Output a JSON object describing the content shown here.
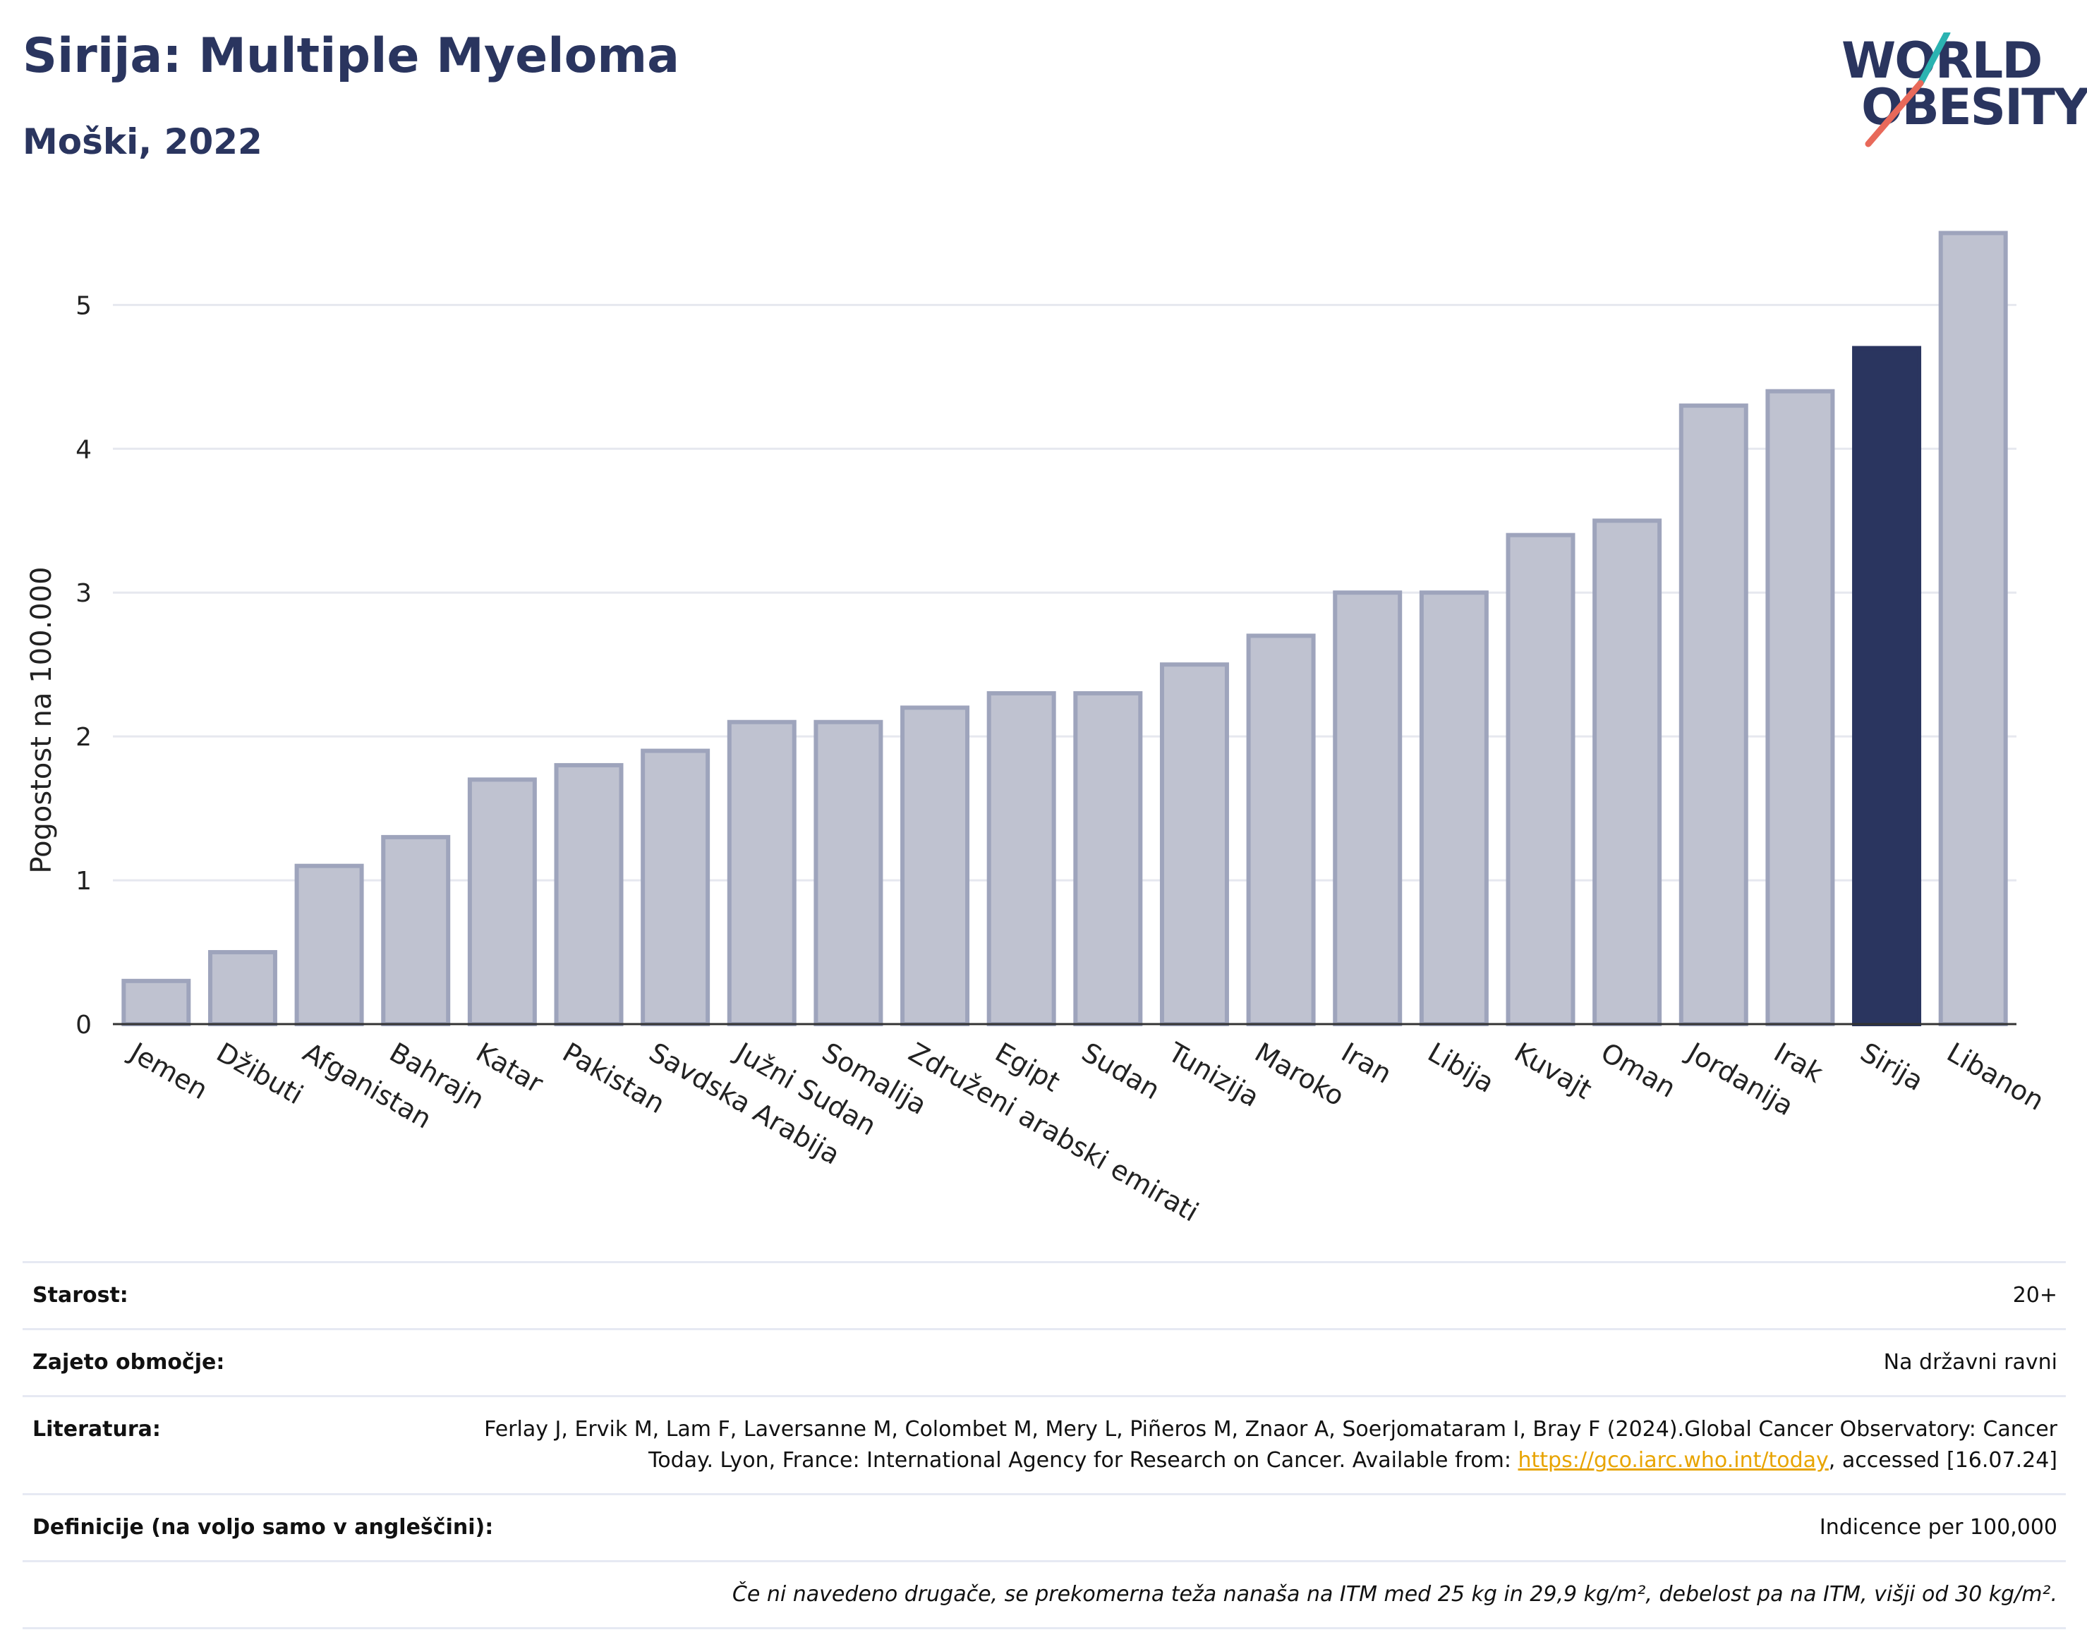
{
  "header": {
    "title": "Sirija: Multiple Myeloma",
    "subtitle": "Moški, 2022"
  },
  "logo": {
    "line1": "WORLD",
    "line2": "OBESITY",
    "accent_colors": [
      "#2bb3b1",
      "#e8695a"
    ]
  },
  "chart_data": {
    "type": "bar",
    "title": "Sirija: Multiple Myeloma",
    "subtitle": "Moški, 2022",
    "xlabel": "",
    "ylabel": "Pogostost na 100.000",
    "ylim": [
      0,
      5.6
    ],
    "yticks": [
      0,
      1,
      2,
      3,
      4,
      5
    ],
    "grid": true,
    "legend": "none",
    "highlight": "Sirija",
    "colors": {
      "bar": "#bfc2d0",
      "bar_edge": "#9ea4bc",
      "highlight": "#2a355f"
    },
    "categories": [
      "Jemen",
      "Džibuti",
      "Afganistan",
      "Bahrajn",
      "Katar",
      "Pakistan",
      "Savdska Arabija",
      "Južni Sudan",
      "Somalija",
      "Združeni arabski emirati",
      "Egipt",
      "Sudan",
      "Tunizija",
      "Maroko",
      "Iran",
      "Libija",
      "Kuvajt",
      "Oman",
      "Jordanija",
      "Irak",
      "Sirija",
      "Libanon"
    ],
    "values": [
      0.3,
      0.5,
      1.1,
      1.3,
      1.7,
      1.8,
      1.9,
      2.1,
      2.1,
      2.2,
      2.3,
      2.3,
      2.5,
      2.7,
      3.0,
      3.0,
      3.4,
      3.5,
      4.3,
      4.4,
      4.7,
      5.5
    ]
  },
  "info": {
    "age_label": "Starost:",
    "age_value": "20+",
    "coverage_label": "Zajeto območje:",
    "coverage_value": "Na državni ravni",
    "lit_label": "Literatura:",
    "lit_text_1": "Ferlay J, Ervik M, Lam F, Laversanne M, Colombet M, Mery L, Piñeros M, Znaor A, Soerjomataram I, Bray F (2024).Global Cancer Observatory: Cancer Today. Lyon, France: International Agency for Research on Cancer. Available from: ",
    "lit_link": "https://gco.iarc.who.int/today",
    "lit_text_2": ", accessed [16.07.24]",
    "def_label": "Definicije (na voljo samo v angleščini):",
    "def_value": "Indicence per 100,000",
    "note": "Če ni navedeno drugače, se prekomerna teža nanaša na ITM med 25 kg in 29,9 kg/m², debelost pa na ITM, višji od 30 kg/m²."
  }
}
